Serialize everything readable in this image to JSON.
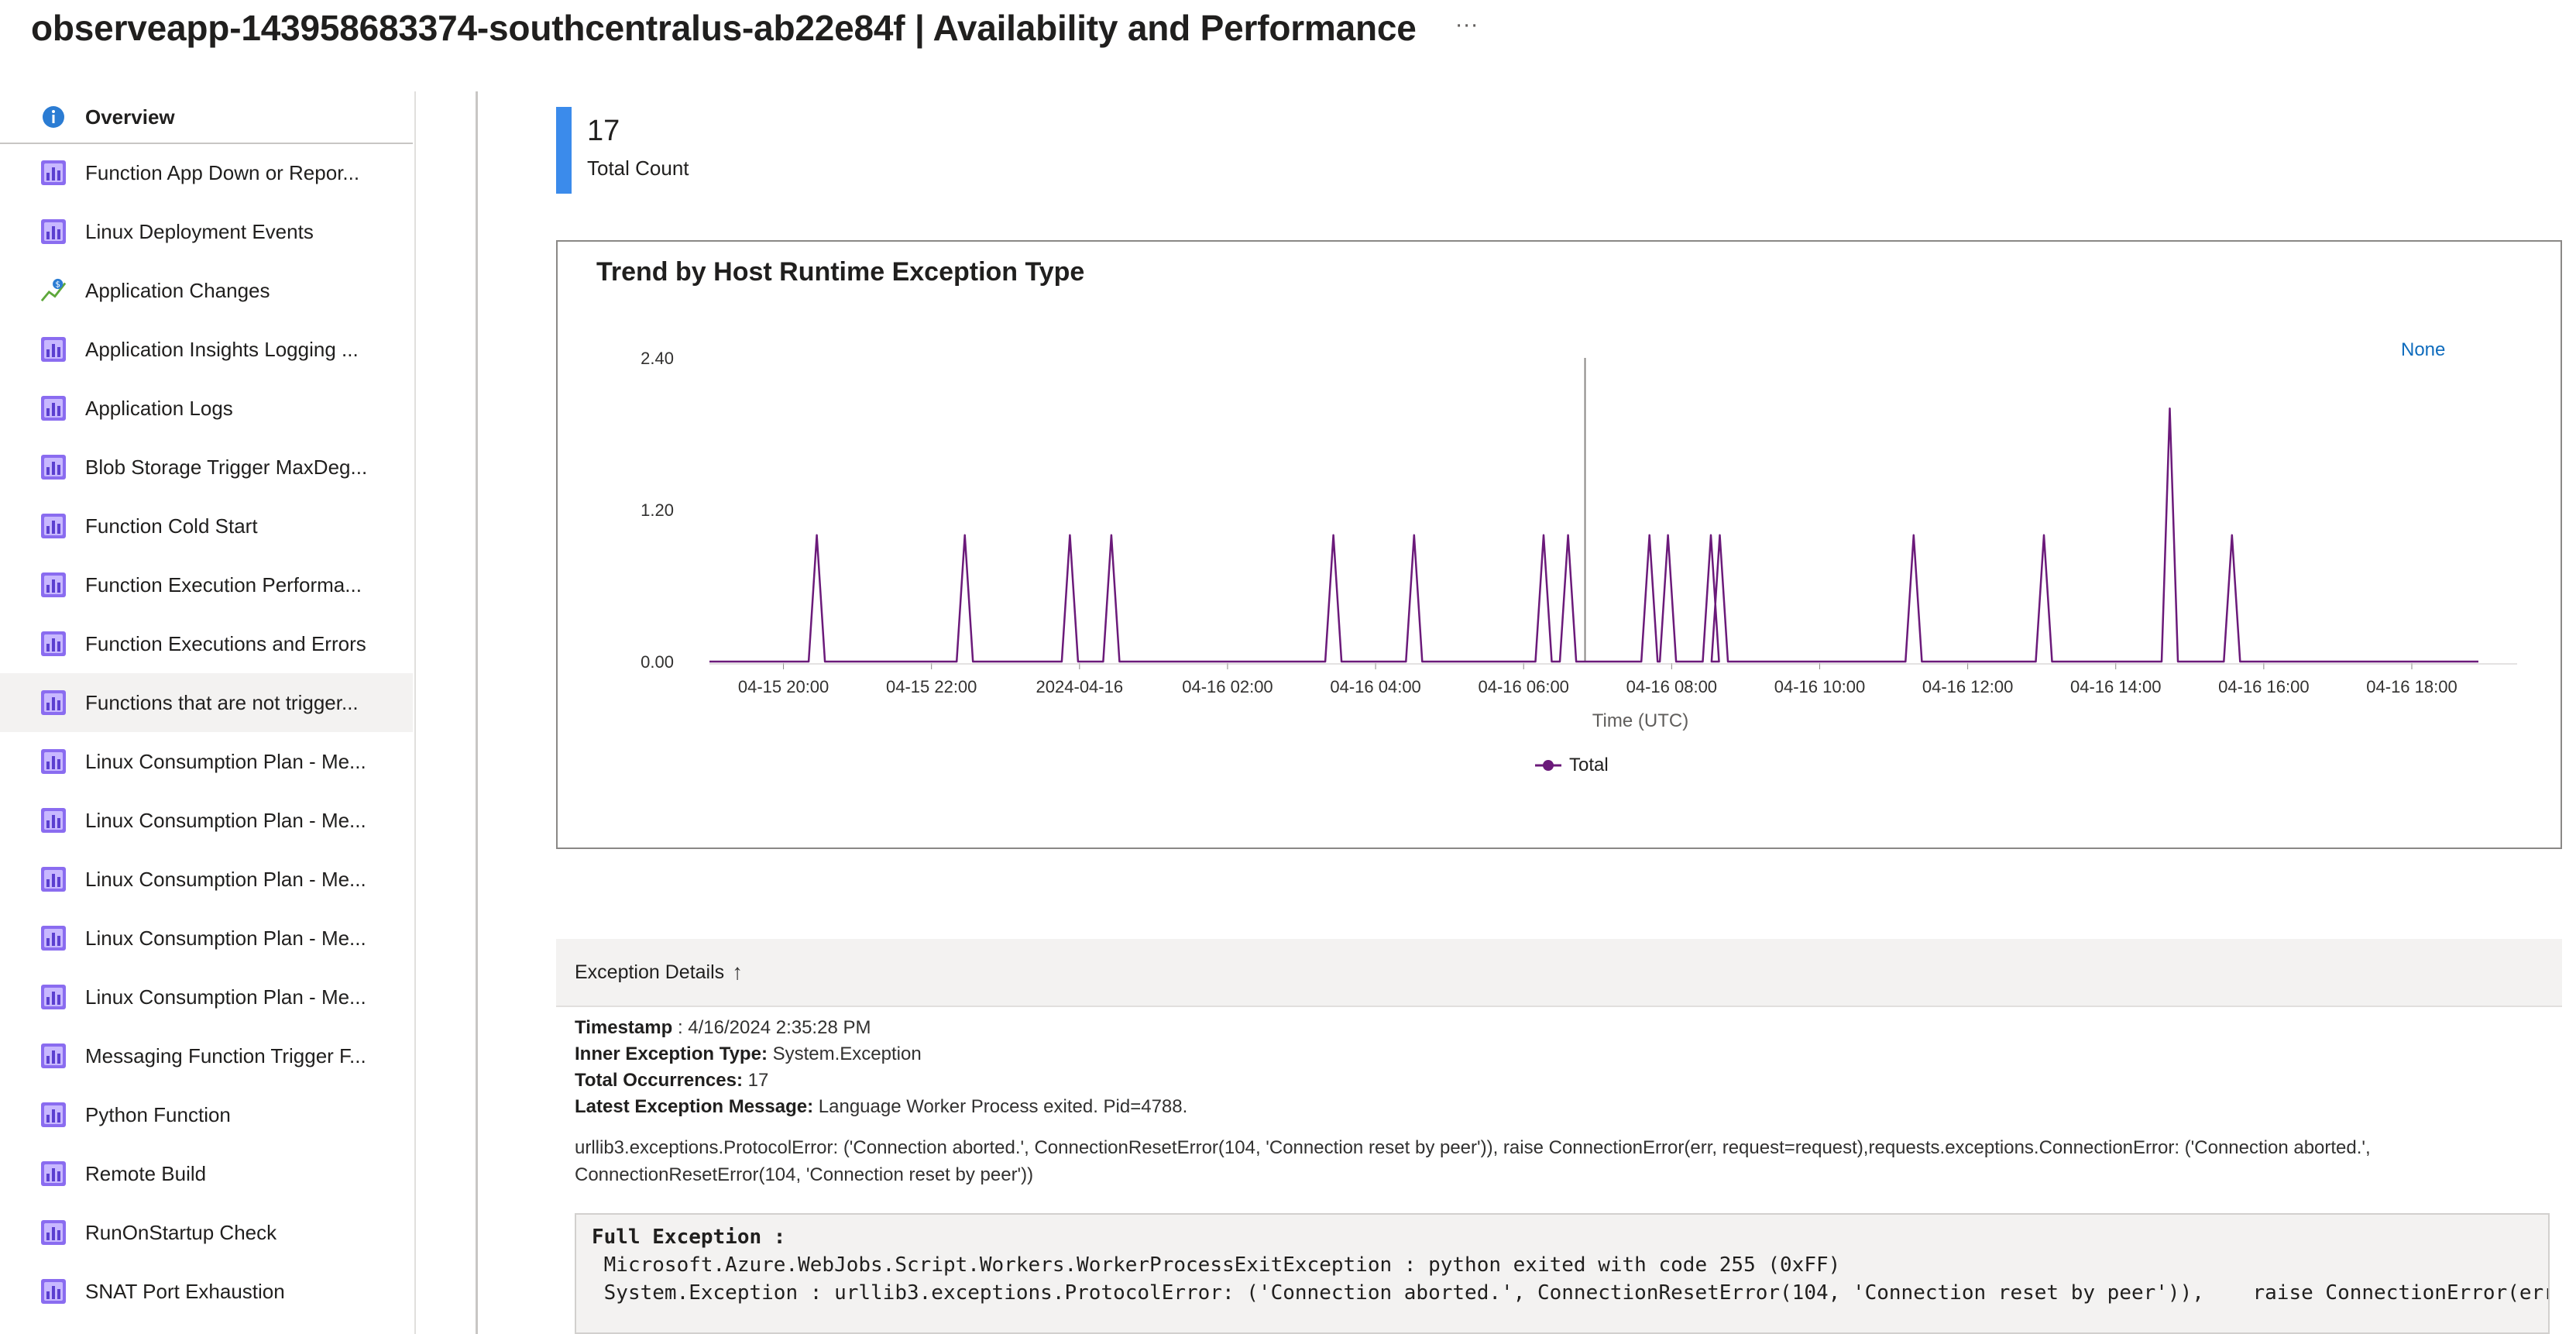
{
  "page": {
    "title": "observeapp-143958683374-southcentralus-ab22e84f | Availability and Performance",
    "more_icon": "···"
  },
  "sidebar": {
    "items": [
      {
        "label": "Overview",
        "icon": "info-icon"
      },
      {
        "label": "Function App Down or Repor...",
        "icon": "workbook-icon"
      },
      {
        "label": "Linux Deployment Events",
        "icon": "workbook-icon"
      },
      {
        "label": "Application Changes",
        "icon": "change-analysis-icon"
      },
      {
        "label": "Application Insights Logging ...",
        "icon": "workbook-icon"
      },
      {
        "label": "Application Logs",
        "icon": "workbook-icon"
      },
      {
        "label": "Blob Storage Trigger MaxDeg...",
        "icon": "workbook-icon"
      },
      {
        "label": "Function Cold Start",
        "icon": "workbook-icon"
      },
      {
        "label": "Function Execution Performa...",
        "icon": "workbook-icon"
      },
      {
        "label": "Function Executions and Errors",
        "icon": "workbook-icon"
      },
      {
        "label": "Functions that are not trigger...",
        "icon": "workbook-icon",
        "selected": true
      },
      {
        "label": "Linux Consumption Plan - Me...",
        "icon": "workbook-icon"
      },
      {
        "label": "Linux Consumption Plan - Me...",
        "icon": "workbook-icon"
      },
      {
        "label": "Linux Consumption Plan - Me...",
        "icon": "workbook-icon"
      },
      {
        "label": "Linux Consumption Plan - Me...",
        "icon": "workbook-icon"
      },
      {
        "label": "Linux Consumption Plan - Me...",
        "icon": "workbook-icon"
      },
      {
        "label": "Messaging Function Trigger F...",
        "icon": "workbook-icon"
      },
      {
        "label": "Python Function",
        "icon": "workbook-icon"
      },
      {
        "label": "Remote Build",
        "icon": "workbook-icon"
      },
      {
        "label": "RunOnStartup Check",
        "icon": "workbook-icon"
      },
      {
        "label": "SNAT Port Exhaustion",
        "icon": "workbook-icon"
      }
    ]
  },
  "kpi": {
    "value": "17",
    "label": "Total Count",
    "color": "#3b8beb"
  },
  "chart_data": {
    "type": "line",
    "title": "Trend by Host Runtime Exception Type",
    "xlabel": "Time (UTC)",
    "ylabel": "",
    "ylim": [
      0,
      2.4
    ],
    "yticks": [
      "0.00",
      "1.20",
      "2.40"
    ],
    "x_tick_labels": [
      "04-15 20:00",
      "04-15 22:00",
      "2024-04-16",
      "04-16 02:00",
      "04-16 04:00",
      "04-16 06:00",
      "04-16 08:00",
      "04-16 10:00",
      "04-16 12:00",
      "04-16 14:00",
      "04-16 16:00",
      "04-16 18:00"
    ],
    "x_tick_hours": [
      20,
      22,
      24,
      26,
      28,
      30,
      32,
      34,
      36,
      38,
      40,
      42
    ],
    "xlim_hours": [
      19.0,
      42.9
    ],
    "series": [
      {
        "name": "Total",
        "color": "#6b1a7a",
        "points": [
          {
            "h": 20.45,
            "v": 1
          },
          {
            "h": 22.45,
            "v": 1
          },
          {
            "h": 23.87,
            "v": 1
          },
          {
            "h": 24.43,
            "v": 1
          },
          {
            "h": 27.43,
            "v": 1
          },
          {
            "h": 28.52,
            "v": 1
          },
          {
            "h": 30.27,
            "v": 1
          },
          {
            "h": 30.6,
            "v": 1
          },
          {
            "h": 31.7,
            "v": 1
          },
          {
            "h": 31.95,
            "v": 1
          },
          {
            "h": 32.53,
            "v": 1
          },
          {
            "h": 32.65,
            "v": 1
          },
          {
            "h": 35.27,
            "v": 1
          },
          {
            "h": 37.03,
            "v": 1
          },
          {
            "h": 38.73,
            "v": 2
          },
          {
            "h": 39.57,
            "v": 1
          }
        ]
      }
    ],
    "legend": "bottom-center",
    "cursor_hour": 30.83,
    "grid": false
  },
  "chart_ui": {
    "none_label": "None",
    "legend_label": "Total"
  },
  "details": {
    "header": "Exception Details",
    "sort_icon": "↑",
    "timestamp_label": "Timestamp",
    "timestamp_value": " : 4/16/2024 2:35:28 PM",
    "inner_type_label": "Inner Exception Type:",
    "inner_type_value": " System.Exception",
    "occurrences_label": "Total Occurrences:",
    "occurrences_value": " 17",
    "latest_msg_label": "Latest Exception Message:",
    "latest_msg_value": " Language Worker Process exited. Pid=4788.",
    "message_body": "urllib3.exceptions.ProtocolError: ('Connection aborted.', ConnectionResetError(104, 'Connection reset by peer')), raise ConnectionError(err, request=request),requests.exceptions.ConnectionError: ('Connection aborted.', ConnectionResetError(104, 'Connection reset by peer'))",
    "full_exception_label": "Full Exception :",
    "full_exception_line1": " Microsoft.Azure.WebJobs.Script.Workers.WorkerProcessExitException : python exited with code 255 (0xFF)",
    "full_exception_line2": " System.Exception : urllib3.exceptions.ProtocolError: ('Connection aborted.', ConnectionResetError(104, 'Connection reset by peer')),    raise ConnectionError(err"
  }
}
